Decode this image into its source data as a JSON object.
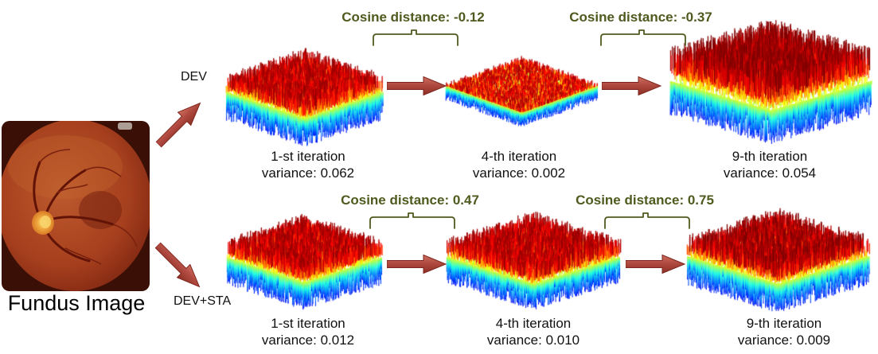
{
  "colors": {
    "annotation_green": "#4e5a1e",
    "arrow_red": "#a7453c",
    "text": "#111111"
  },
  "fundus": {
    "label": "Fundus Image"
  },
  "rows": [
    {
      "branch_label": "DEV",
      "cosine": [
        {
          "label": "Cosine distance: -0.12"
        },
        {
          "label": "Cosine distance: -0.37"
        }
      ],
      "panels": [
        {
          "title": "1-st iteration",
          "variance": "variance: 0.062"
        },
        {
          "title": "4-th iteration",
          "variance": "variance: 0.002"
        },
        {
          "title": "9-th iteration",
          "variance": "variance: 0.054"
        }
      ]
    },
    {
      "branch_label": "DEV+STA",
      "cosine": [
        {
          "label": "Cosine distance: 0.47"
        },
        {
          "label": "Cosine distance: 0.75"
        }
      ],
      "panels": [
        {
          "title": "1-st iteration",
          "variance": "variance: 0.012"
        },
        {
          "title": "4-th iteration",
          "variance": "variance: 0.010"
        },
        {
          "title": "9-th iteration",
          "variance": "variance: 0.009"
        }
      ]
    }
  ]
}
